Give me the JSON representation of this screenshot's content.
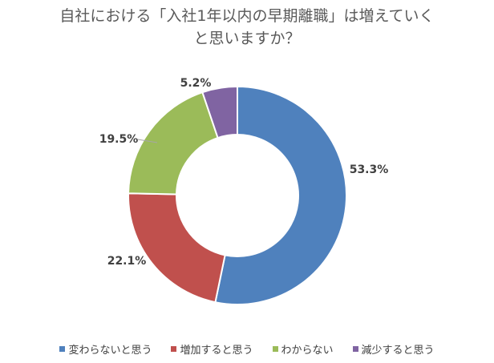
{
  "chart_data": {
    "type": "pie",
    "variant": "donut",
    "title_lines": [
      "自社における「入社1年以内の早期離職」は増えていく",
      "と思いますか？"
    ],
    "categories": [
      "変わらないと思う",
      "増加すると思う",
      "わからない",
      "減少すると思う"
    ],
    "values": [
      53.3,
      22.1,
      19.5,
      5.2
    ],
    "labels": [
      "53.3%",
      "22.1%",
      "19.5%",
      "5.2%"
    ],
    "colors": [
      "#4F81BD",
      "#C0504D",
      "#9BBB59",
      "#8064A2"
    ],
    "legend_position": "bottom"
  }
}
